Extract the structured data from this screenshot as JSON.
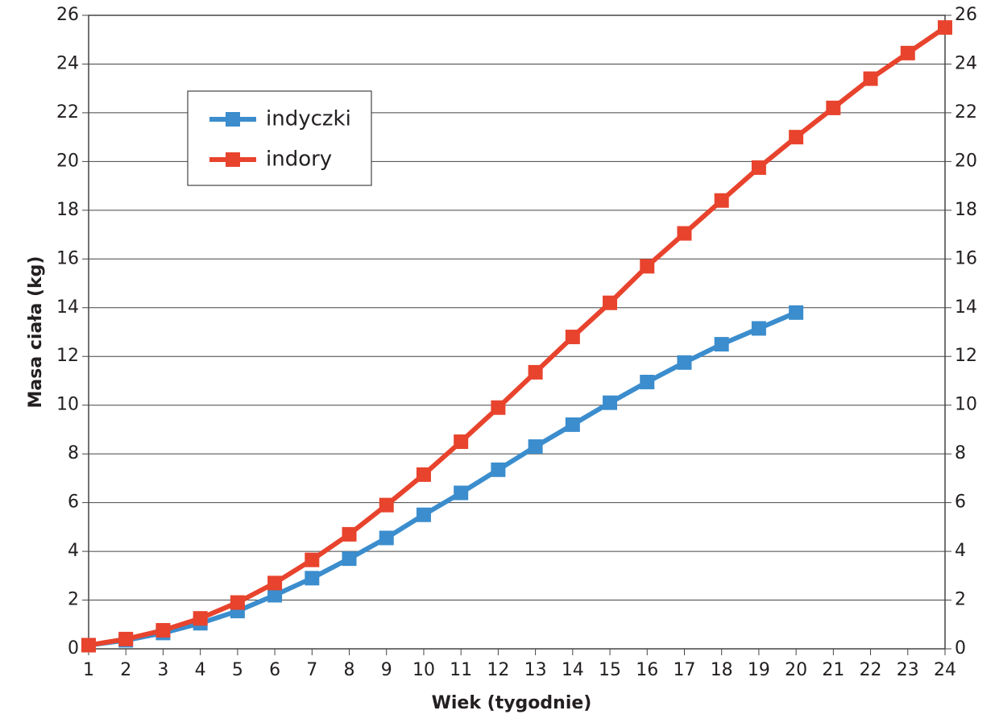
{
  "chart_data": {
    "type": "line",
    "x_label": "Wiek (tygodnie)",
    "y_label": "Masa ciała (kg)",
    "x": [
      1,
      2,
      3,
      4,
      5,
      6,
      7,
      8,
      9,
      10,
      11,
      12,
      13,
      14,
      15,
      16,
      17,
      18,
      19,
      20,
      21,
      22,
      23,
      24
    ],
    "series": [
      {
        "name": "indyczki",
        "color": "#3b8dcd",
        "values": [
          0.15,
          0.35,
          0.65,
          1.05,
          1.55,
          2.2,
          2.9,
          3.7,
          4.55,
          5.5,
          6.4,
          7.35,
          8.3,
          9.2,
          10.1,
          10.95,
          11.75,
          12.5,
          13.15,
          13.8,
          null,
          null,
          null,
          null
        ]
      },
      {
        "name": "indory",
        "color": "#e8432d",
        "values": [
          0.15,
          0.4,
          0.76,
          1.25,
          1.9,
          2.7,
          3.65,
          4.7,
          5.9,
          7.15,
          8.5,
          9.9,
          11.35,
          12.8,
          14.2,
          15.7,
          17.05,
          18.4,
          19.75,
          21.0,
          22.2,
          23.4,
          24.45,
          25.5
        ]
      }
    ],
    "xlim": [
      1,
      24
    ],
    "xticks": [
      1,
      2,
      3,
      4,
      5,
      6,
      7,
      8,
      9,
      10,
      11,
      12,
      13,
      14,
      15,
      16,
      17,
      18,
      19,
      20,
      21,
      22,
      23,
      24
    ],
    "ylim": [
      0,
      26
    ],
    "yticks": [
      0,
      2,
      4,
      6,
      8,
      10,
      12,
      14,
      16,
      18,
      20,
      22,
      24,
      26
    ],
    "grid": true,
    "legend": "upper left",
    "right_axis_labels": true
  }
}
